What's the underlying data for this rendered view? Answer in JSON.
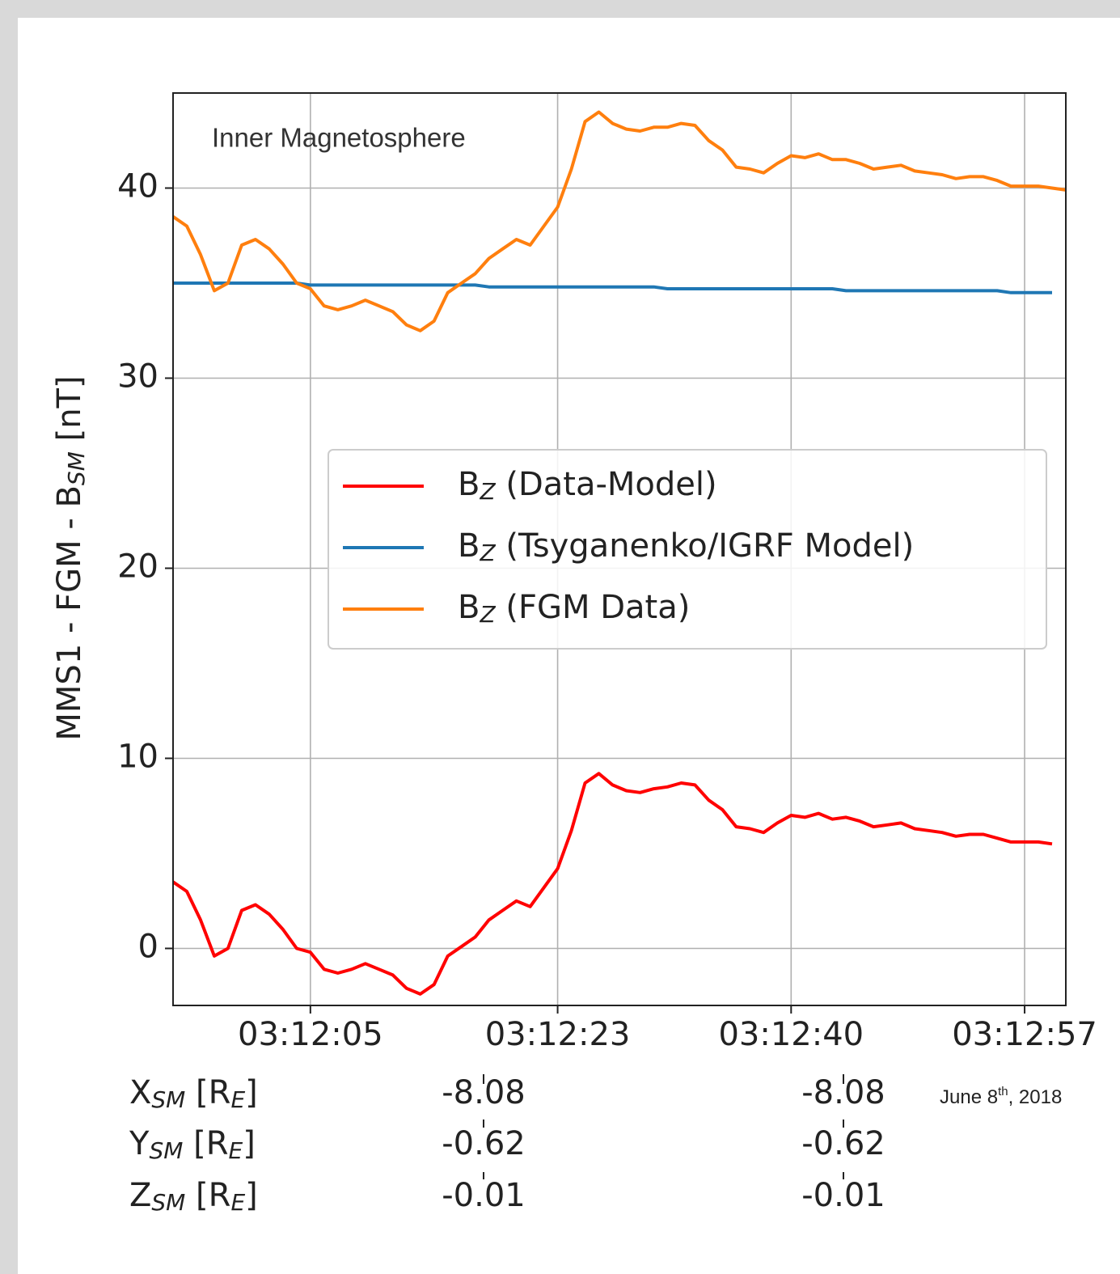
{
  "chart_data": {
    "type": "line",
    "annotations": [
      "Inner Magnetosphere"
    ],
    "date": {
      "text": "June 8",
      "sup": "th",
      "rest": ", 2018"
    },
    "ylabel": {
      "text": "MMS1 - FGM - B",
      "sub": "SM",
      "rest": " [nT]"
    },
    "x": [
      "03:11:55",
      "03:11:56",
      "03:11:57",
      "03:11:58",
      "03:11:59",
      "03:12:00",
      "03:12:01",
      "03:12:02",
      "03:12:03",
      "03:12:04",
      "03:12:05",
      "03:12:06",
      "03:12:07",
      "03:12:08",
      "03:12:09",
      "03:12:10",
      "03:12:11",
      "03:12:12",
      "03:12:13",
      "03:12:14",
      "03:12:15",
      "03:12:16",
      "03:12:17",
      "03:12:18",
      "03:12:19",
      "03:12:20",
      "03:12:21",
      "03:12:22",
      "03:12:23",
      "03:12:24",
      "03:12:25",
      "03:12:26",
      "03:12:27",
      "03:12:28",
      "03:12:29",
      "03:12:30",
      "03:12:31",
      "03:12:32",
      "03:12:33",
      "03:12:34",
      "03:12:35",
      "03:12:36",
      "03:12:37",
      "03:12:38",
      "03:12:39",
      "03:12:40",
      "03:12:41",
      "03:12:42",
      "03:12:43",
      "03:12:44",
      "03:12:45",
      "03:12:46",
      "03:12:47",
      "03:12:48",
      "03:12:49",
      "03:12:50",
      "03:12:51",
      "03:12:52",
      "03:12:53",
      "03:12:54",
      "03:12:55",
      "03:12:56",
      "03:12:57",
      "03:12:58",
      "03:12:59",
      "03:13:00"
    ],
    "series": [
      {
        "symbol": "B",
        "subscript": "Z",
        "name": " (Data-Model)",
        "color": "#ff0000",
        "values": [
          3.5,
          3.0,
          1.5,
          -0.4,
          0.0,
          2.0,
          2.3,
          1.8,
          1.0,
          0.0,
          -0.2,
          -1.1,
          -1.3,
          -1.1,
          -0.8,
          -1.1,
          -1.4,
          -2.1,
          -2.4,
          -1.9,
          -0.4,
          0.1,
          0.6,
          1.5,
          2.0,
          2.5,
          2.2,
          3.2,
          4.2,
          6.2,
          8.7,
          9.2,
          8.6,
          8.3,
          8.2,
          8.4,
          8.5,
          8.7,
          8.6,
          7.8,
          7.3,
          6.4,
          6.3,
          6.1,
          6.6,
          7.0,
          6.9,
          7.1,
          6.8,
          6.9,
          6.7,
          6.4,
          6.5,
          6.6,
          6.3,
          6.2,
          6.1,
          5.9,
          6.0,
          6.0,
          5.8,
          5.6,
          5.6,
          5.6,
          5.5,
          null
        ]
      },
      {
        "symbol": "B",
        "subscript": "Z",
        "name": " (Tsyganenko/IGRF Model)",
        "color": "#1f77b4",
        "values": [
          35.0,
          35.0,
          35.0,
          35.0,
          35.0,
          35.0,
          35.0,
          35.0,
          35.0,
          35.0,
          34.9,
          34.9,
          34.9,
          34.9,
          34.9,
          34.9,
          34.9,
          34.9,
          34.9,
          34.9,
          34.9,
          34.9,
          34.9,
          34.8,
          34.8,
          34.8,
          34.8,
          34.8,
          34.8,
          34.8,
          34.8,
          34.8,
          34.8,
          34.8,
          34.8,
          34.8,
          34.7,
          34.7,
          34.7,
          34.7,
          34.7,
          34.7,
          34.7,
          34.7,
          34.7,
          34.7,
          34.7,
          34.7,
          34.7,
          34.6,
          34.6,
          34.6,
          34.6,
          34.6,
          34.6,
          34.6,
          34.6,
          34.6,
          34.6,
          34.6,
          34.6,
          34.5,
          34.5,
          34.5,
          34.5,
          null
        ]
      },
      {
        "symbol": "B",
        "subscript": "Z",
        "name": " (FGM Data)",
        "color": "#ff7f0e",
        "values": [
          38.5,
          38.0,
          36.5,
          34.6,
          35.0,
          37.0,
          37.3,
          36.8,
          36.0,
          35.0,
          34.7,
          33.8,
          33.6,
          33.8,
          34.1,
          33.8,
          33.5,
          32.8,
          32.5,
          33.0,
          34.5,
          35.0,
          35.5,
          36.3,
          36.8,
          37.3,
          37.0,
          38.0,
          39.0,
          41.0,
          43.5,
          44.0,
          43.4,
          43.1,
          43.0,
          43.2,
          43.2,
          43.4,
          43.3,
          42.5,
          42.0,
          41.1,
          41.0,
          40.8,
          41.3,
          41.7,
          41.6,
          41.8,
          41.5,
          41.5,
          41.3,
          41.0,
          41.1,
          41.2,
          40.9,
          40.8,
          40.7,
          40.5,
          40.6,
          40.6,
          40.4,
          40.1,
          40.1,
          40.1,
          40.0,
          39.9
        ]
      }
    ],
    "xlim": [
      "03:11:55",
      "03:13:00"
    ],
    "xticks": [
      "03:12:05",
      "03:12:23",
      "03:12:40",
      "03:12:57"
    ],
    "ylim": [
      -3,
      45
    ],
    "yticks": [
      0,
      10,
      20,
      30,
      40
    ],
    "grid": true,
    "legend": "center",
    "ephemeris": [
      {
        "label": "X",
        "sub": "SM",
        "unit": " [R",
        "unit_sub": "E",
        "unit_end": "]",
        "values": [
          -8.08,
          -8.08
        ]
      },
      {
        "label": "Y",
        "sub": "SM",
        "unit": " [R",
        "unit_sub": "E",
        "unit_end": "]",
        "values": [
          -0.62,
          -0.62
        ]
      },
      {
        "label": "Z",
        "sub": "SM",
        "unit": " [R",
        "unit_sub": "E",
        "unit_end": "]",
        "values": [
          -0.01,
          -0.01
        ]
      }
    ]
  }
}
